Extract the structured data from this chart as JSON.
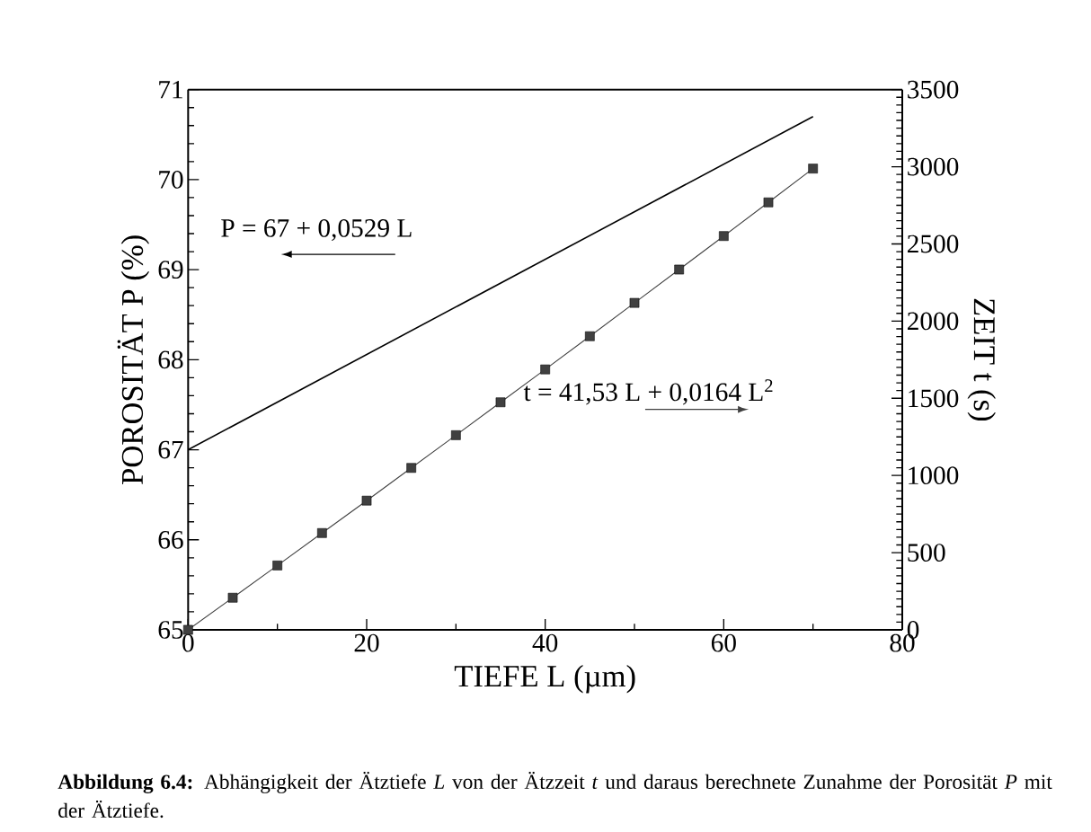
{
  "chart_data": {
    "type": "line",
    "xlabel": "TIEFE  L  (µm)",
    "ylabel": "POROSITÄT  P  (%)",
    "y2label": "ZEIT  t  (s)",
    "xlim": [
      0,
      80
    ],
    "xticks": [
      0,
      20,
      40,
      60,
      80
    ],
    "ylim": [
      65,
      71
    ],
    "yticks": [
      65,
      66,
      67,
      68,
      69,
      70,
      71
    ],
    "y2lim": [
      0,
      3500
    ],
    "y2ticks": [
      0,
      500,
      1000,
      1500,
      2000,
      2500,
      3000,
      3500
    ],
    "grid": false,
    "series": [
      {
        "x": [
          0,
          70
        ],
        "values": [
          67,
          70.7
        ],
        "color": "#000000",
        "marker": "none"
      },
      {
        "axis": "y2",
        "x": [
          0,
          5,
          10,
          15,
          20,
          25,
          30,
          35,
          40,
          45,
          50,
          55,
          60,
          65,
          70
        ],
        "values": [
          0,
          208,
          417,
          627,
          837,
          1049,
          1261,
          1474,
          1687,
          1902,
          2118,
          2334,
          2551,
          2769,
          2988
        ],
        "color": "#404040",
        "marker": "square"
      }
    ],
    "annotations": [
      "P = 67 + 0,0529 L",
      "t = 41,53 L + 0,0164 L$^{2}$",
      "**Abbildung 6.4:** Abhängigkeit der Ätztiefe *L* von der Ätzzeit *t* und daraus berechnete Zunahme der Porosität *P* mit der Ätztiefe."
    ]
  }
}
